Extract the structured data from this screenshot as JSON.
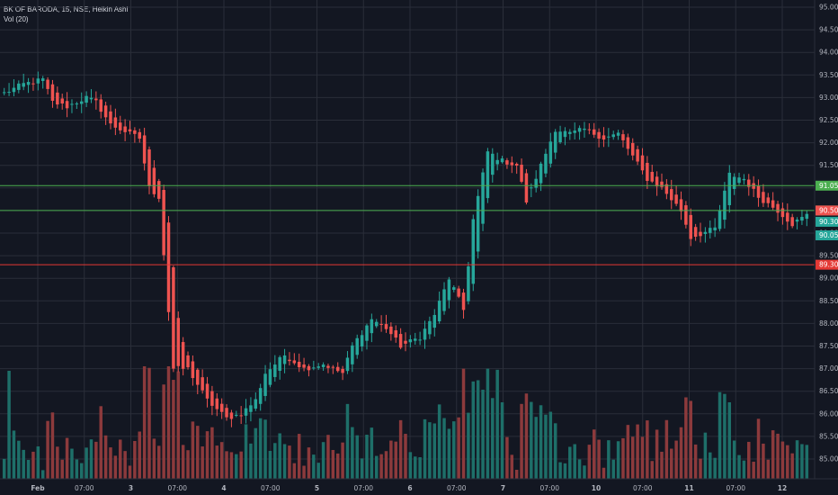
{
  "header": {
    "symbol_line": "BK OF BARODA, 15, NSE, Heikin Ashi",
    "volume_line": "Vol (20)"
  },
  "colors": {
    "background": "#131722",
    "grid": "#2a2e39",
    "up": "#26a69a",
    "down": "#ef5350",
    "vol_up": "#1e6f69",
    "vol_down": "#8c3a3c",
    "line_green": "#4caf50",
    "line_red": "#e53935",
    "text": "#b2b5be"
  },
  "chart_data": {
    "type": "candlestick",
    "price_axis": {
      "ylim": [
        84.75,
        95.0
      ],
      "ticks": [
        "85.00",
        "85.50",
        "86.00",
        "86.50",
        "87.00",
        "87.50",
        "88.00",
        "88.50",
        "89.00",
        "89.50",
        "90.00",
        "90.50",
        "91.00",
        "91.50",
        "92.00",
        "92.50",
        "93.00",
        "93.50",
        "94.00",
        "94.50",
        "95.00"
      ]
    },
    "time_axis": {
      "labels": [
        "Feb",
        "07:00",
        "3",
        "07:00",
        "4",
        "07:00",
        "5",
        "07:00",
        "6",
        "07:00",
        "7",
        "07:00",
        "10",
        "07:00",
        "11",
        "07:00",
        "12"
      ]
    },
    "horizontal_lines": [
      {
        "value": 91.05,
        "label": "91.05",
        "color": "green"
      },
      {
        "value": 90.5,
        "label": "90.50",
        "color": "green"
      },
      {
        "value": 89.3,
        "label": "89.30",
        "color": "red"
      }
    ],
    "price_labels": [
      {
        "value": 90.5,
        "label": "90.50",
        "bg": "#ef5350"
      },
      {
        "value": 90.3,
        "label": "90.30",
        "bg": "#26a69a"
      },
      {
        "value": 90.05,
        "label": "90.05",
        "bg": "#26a69a"
      }
    ],
    "anchors": [
      [
        0,
        93.1
      ],
      [
        4,
        93.3
      ],
      [
        8,
        93.4
      ],
      [
        10,
        92.9
      ],
      [
        13,
        92.8
      ],
      [
        17,
        93.0
      ],
      [
        19,
        92.9
      ],
      [
        22,
        92.4
      ],
      [
        26,
        92.2
      ],
      [
        28,
        92.1
      ],
      [
        30,
        91.0
      ],
      [
        32,
        90.8
      ],
      [
        35,
        87.0
      ],
      [
        38,
        87.0
      ],
      [
        42,
        86.3
      ],
      [
        46,
        85.9
      ],
      [
        49,
        86.0
      ],
      [
        52,
        86.3
      ],
      [
        54,
        86.9
      ],
      [
        58,
        87.3
      ],
      [
        62,
        87.0
      ],
      [
        66,
        87.1
      ],
      [
        70,
        86.9
      ],
      [
        72,
        87.5
      ],
      [
        76,
        88.1
      ],
      [
        79,
        87.9
      ],
      [
        82,
        87.5
      ],
      [
        86,
        87.7
      ],
      [
        89,
        88.2
      ],
      [
        92,
        89.0
      ],
      [
        95,
        88.3
      ],
      [
        97,
        90.3
      ],
      [
        100,
        91.8
      ],
      [
        103,
        91.6
      ],
      [
        106,
        91.5
      ],
      [
        108,
        90.7
      ],
      [
        111,
        91.5
      ],
      [
        114,
        92.3
      ],
      [
        117,
        92.2
      ],
      [
        120,
        92.3
      ],
      [
        124,
        92.1
      ],
      [
        127,
        92.2
      ],
      [
        130,
        91.7
      ],
      [
        133,
        91.2
      ],
      [
        136,
        91.0
      ],
      [
        140,
        90.5
      ],
      [
        142,
        89.9
      ],
      [
        147,
        90.1
      ],
      [
        150,
        91.3
      ],
      [
        153,
        91.2
      ],
      [
        156,
        90.8
      ],
      [
        160,
        90.5
      ],
      [
        163,
        90.2
      ],
      [
        166,
        90.4
      ]
    ],
    "candle_count": 167
  }
}
